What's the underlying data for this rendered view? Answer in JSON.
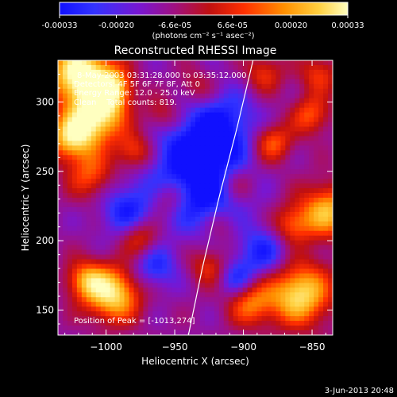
{
  "colorbar": {
    "min": -0.00033,
    "max": 0.00033,
    "ticks": [
      {
        "value": -0.00033,
        "label": "-0.00033"
      },
      {
        "value": -0.0002,
        "label": "-0.00020"
      },
      {
        "value": -6.6e-05,
        "label": "-6.6e-05"
      },
      {
        "value": 6.6e-05,
        "label": "6.6e-05"
      },
      {
        "value": 0.0002,
        "label": "0.00020"
      },
      {
        "value": 0.00033,
        "label": "0.00033"
      }
    ],
    "unit_label": "(photons cm⁻² s⁻¹ asec⁻²)",
    "gradient_stops": [
      "#1010ff",
      "#3333ff",
      "#7a16d0",
      "#a01080",
      "#c01010",
      "#ff3000",
      "#ff9000",
      "#ffd040",
      "#ffffc0"
    ]
  },
  "chart_data": {
    "type": "heatmap",
    "title": "Reconstructed RHESSI Image",
    "xlabel": "Heliocentric X (arcsec)",
    "ylabel": "Heliocentric Y (arcsec)",
    "xlim": [
      -1035,
      -835
    ],
    "ylim": [
      132,
      330
    ],
    "xticks": [
      {
        "value": -1000,
        "label": "−1000"
      },
      {
        "value": -950,
        "label": "−950"
      },
      {
        "value": -900,
        "label": "−900"
      },
      {
        "value": -850,
        "label": "−850"
      }
    ],
    "yticks": [
      {
        "value": 150,
        "label": "150"
      },
      {
        "value": 200,
        "label": "200"
      },
      {
        "value": 250,
        "label": "250"
      },
      {
        "value": 300,
        "label": "300"
      }
    ],
    "annotations": [
      "8-May-2003 03:31:28.000 to 03:35:12.000",
      "Detectors: 4F 5F 6F 7F 8F, Att 0",
      "Energy Range: 12.0 - 25.0 keV",
      "Clean    Total counts: 819."
    ],
    "peak_label": "Position of Peak = [-1013,274]",
    "peak": [
      -1013,
      274
    ],
    "limb_line": [
      [
        -940,
        132
      ],
      [
        -930,
        180
      ],
      [
        -918,
        230
      ],
      [
        -905,
        280
      ],
      [
        -893,
        330
      ]
    ]
  },
  "footer": {
    "date": "3-Jun-2013 20:48"
  }
}
